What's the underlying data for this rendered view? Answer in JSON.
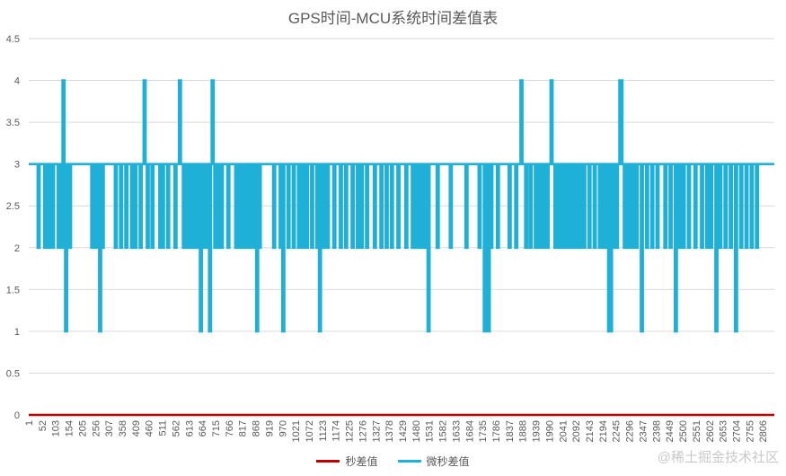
{
  "chart_data": {
    "type": "line",
    "title": "GPS时间-MCU系统时间差值表",
    "xlabel": "",
    "ylabel": "",
    "ylim": [
      0,
      4.5
    ],
    "yticks": [
      "0",
      "0.5",
      "1",
      "1.5",
      "2",
      "2.5",
      "3",
      "3.5",
      "4",
      "4.5"
    ],
    "xlim": [
      1,
      2850
    ],
    "xticks": [
      1,
      52,
      103,
      154,
      205,
      256,
      307,
      358,
      409,
      460,
      511,
      562,
      613,
      664,
      715,
      766,
      817,
      868,
      919,
      970,
      1021,
      1072,
      1123,
      1174,
      1225,
      1276,
      1327,
      1378,
      1429,
      1480,
      1531,
      1582,
      1633,
      1684,
      1735,
      1786,
      1837,
      1888,
      1939,
      1990,
      2041,
      2092,
      2143,
      2194,
      2245,
      2296,
      2347,
      2398,
      2449,
      2500,
      2551,
      2602,
      2653,
      2704,
      2755,
      2806
    ],
    "grid": true,
    "legend_position": "bottom",
    "series": [
      {
        "name": "秒差值",
        "color": "#c00000",
        "values": [
          [
            1,
            0
          ],
          [
            2850,
            0
          ]
        ]
      },
      {
        "name": "微秒差值",
        "color": "#1fb0d8",
        "baseline": 3,
        "dips": [
          [
            35,
            2
          ],
          [
            60,
            2
          ],
          [
            75,
            2
          ],
          [
            90,
            2
          ],
          [
            112,
            2
          ],
          [
            125,
            2
          ],
          [
            130,
            4
          ],
          [
            140,
            1
          ],
          [
            148,
            2
          ],
          [
            155,
            2
          ],
          [
            240,
            2
          ],
          [
            250,
            2
          ],
          [
            258,
            2
          ],
          [
            270,
            1
          ],
          [
            280,
            2
          ],
          [
            330,
            2
          ],
          [
            350,
            2
          ],
          [
            370,
            2
          ],
          [
            392,
            2
          ],
          [
            405,
            2
          ],
          [
            425,
            2
          ],
          [
            440,
            4
          ],
          [
            452,
            2
          ],
          [
            470,
            2
          ],
          [
            500,
            2
          ],
          [
            510,
            2
          ],
          [
            530,
            2
          ],
          [
            558,
            2
          ],
          [
            575,
            4
          ],
          [
            590,
            2
          ],
          [
            605,
            2
          ],
          [
            620,
            2
          ],
          [
            635,
            2
          ],
          [
            645,
            2
          ],
          [
            655,
            1
          ],
          [
            670,
            2
          ],
          [
            680,
            2
          ],
          [
            690,
            1
          ],
          [
            700,
            4
          ],
          [
            710,
            2
          ],
          [
            722,
            2
          ],
          [
            735,
            2
          ],
          [
            760,
            2
          ],
          [
            790,
            2
          ],
          [
            800,
            2
          ],
          [
            808,
            2
          ],
          [
            815,
            2
          ],
          [
            825,
            2
          ],
          [
            835,
            2
          ],
          [
            850,
            2
          ],
          [
            862,
            2
          ],
          [
            870,
            1
          ],
          [
            880,
            2
          ],
          [
            935,
            2
          ],
          [
            960,
            2
          ],
          [
            970,
            1
          ],
          [
            990,
            2
          ],
          [
            1010,
            2
          ],
          [
            1030,
            2
          ],
          [
            1045,
            2
          ],
          [
            1060,
            2
          ],
          [
            1080,
            2
          ],
          [
            1100,
            2
          ],
          [
            1110,
            1
          ],
          [
            1125,
            2
          ],
          [
            1140,
            2
          ],
          [
            1165,
            2
          ],
          [
            1190,
            2
          ],
          [
            1210,
            2
          ],
          [
            1235,
            2
          ],
          [
            1255,
            2
          ],
          [
            1270,
            2
          ],
          [
            1290,
            2
          ],
          [
            1320,
            2
          ],
          [
            1345,
            2
          ],
          [
            1365,
            2
          ],
          [
            1385,
            2
          ],
          [
            1410,
            2
          ],
          [
            1440,
            2
          ],
          [
            1465,
            2
          ],
          [
            1480,
            2
          ],
          [
            1495,
            2
          ],
          [
            1510,
            2
          ],
          [
            1525,
            1
          ],
          [
            1560,
            2
          ],
          [
            1610,
            2
          ],
          [
            1670,
            2
          ],
          [
            1720,
            2
          ],
          [
            1740,
            1
          ],
          [
            1755,
            1
          ],
          [
            1765,
            2
          ],
          [
            1790,
            2
          ],
          [
            1835,
            2
          ],
          [
            1860,
            2
          ],
          [
            1880,
            4
          ],
          [
            1898,
            2
          ],
          [
            1915,
            2
          ],
          [
            1935,
            2
          ],
          [
            1950,
            2
          ],
          [
            1965,
            2
          ],
          [
            1980,
            2
          ],
          [
            1995,
            4
          ],
          [
            2010,
            2
          ],
          [
            2022,
            2
          ],
          [
            2032,
            2
          ],
          [
            2045,
            2
          ],
          [
            2055,
            2
          ],
          [
            2065,
            2
          ],
          [
            2075,
            2
          ],
          [
            2090,
            2
          ],
          [
            2105,
            2
          ],
          [
            2120,
            2
          ],
          [
            2140,
            2
          ],
          [
            2160,
            2
          ],
          [
            2180,
            2
          ],
          [
            2195,
            2
          ],
          [
            2205,
            2
          ],
          [
            2215,
            1
          ],
          [
            2222,
            1
          ],
          [
            2232,
            2
          ],
          [
            2245,
            2
          ],
          [
            2258,
            4
          ],
          [
            2262,
            4
          ],
          [
            2275,
            2
          ],
          [
            2290,
            2
          ],
          [
            2305,
            2
          ],
          [
            2320,
            2
          ],
          [
            2340,
            1
          ],
          [
            2360,
            2
          ],
          [
            2380,
            2
          ],
          [
            2400,
            2
          ],
          [
            2430,
            2
          ],
          [
            2450,
            2
          ],
          [
            2470,
            1
          ],
          [
            2485,
            2
          ],
          [
            2500,
            2
          ],
          [
            2520,
            2
          ],
          [
            2545,
            2
          ],
          [
            2570,
            2
          ],
          [
            2590,
            2
          ],
          [
            2605,
            2
          ],
          [
            2625,
            1
          ],
          [
            2640,
            2
          ],
          [
            2660,
            2
          ],
          [
            2680,
            2
          ],
          [
            2700,
            1
          ],
          [
            2720,
            2
          ],
          [
            2740,
            2
          ],
          [
            2760,
            2
          ],
          [
            2780,
            2
          ]
        ]
      }
    ]
  },
  "watermark": "@稀土掘金技术社区"
}
